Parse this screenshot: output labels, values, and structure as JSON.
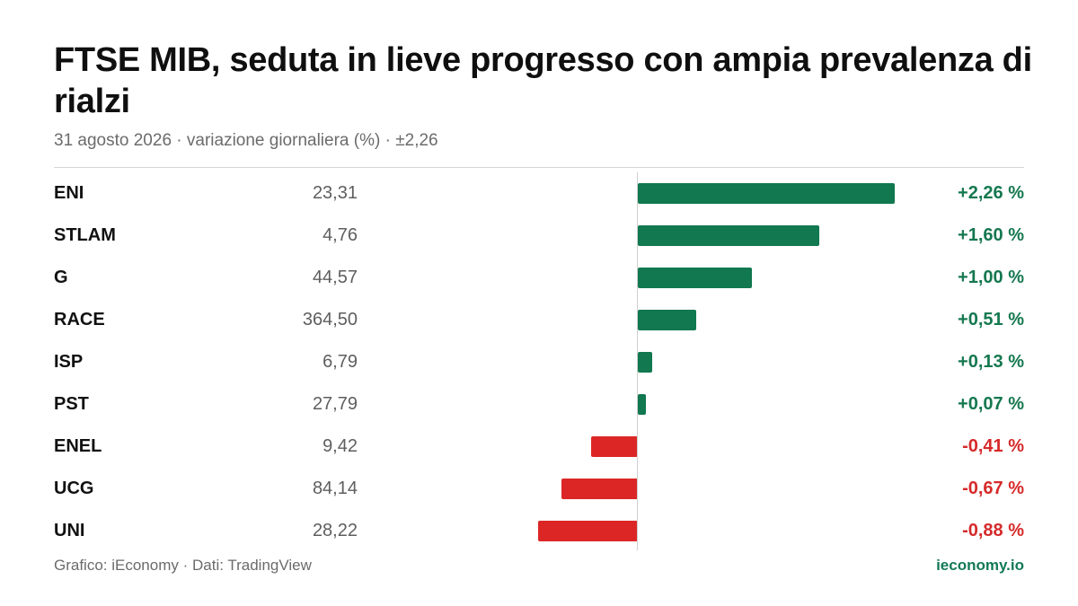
{
  "header": {
    "title": "FTSE MIB, seduta in lieve progresso con ampia prevalenza di rialzi",
    "subtitle": "31 agosto 2026 · variazione giornaliera (%) · ±2,26"
  },
  "colors": {
    "positive": "#11784f",
    "negative": "#dc2626",
    "brand": "#137a56"
  },
  "chart_data": {
    "type": "bar",
    "orientation": "horizontal",
    "title": "FTSE MIB, seduta in lieve progresso con ampia prevalenza di rialzi",
    "subtitle": "31 agosto 2026 · variazione giornaliera (%) · ±2,26",
    "xlim": [
      -2.26,
      2.26
    ],
    "categories": [
      "ENI",
      "STLAM",
      "G",
      "RACE",
      "ISP",
      "PST",
      "ENEL",
      "UCG",
      "UNI"
    ],
    "values": [
      2.26,
      1.6,
      1.0,
      0.51,
      0.13,
      0.07,
      -0.41,
      -0.67,
      -0.88
    ],
    "prices": [
      "23,31",
      "4,76",
      "44,57",
      "364,50",
      "6,79",
      "27,79",
      "9,42",
      "84,14",
      "28,22"
    ],
    "labels": [
      "+2,26 %",
      "+1,60 %",
      "+1,00 %",
      "+0,51 %",
      "+0,13 %",
      "+0,07 %",
      "-0,41 %",
      "-0,67 %",
      "-0,88 %"
    ]
  },
  "footer": {
    "source": "Grafico: iEconomy · Dati: TradingView",
    "brand": "ieconomy.io"
  }
}
